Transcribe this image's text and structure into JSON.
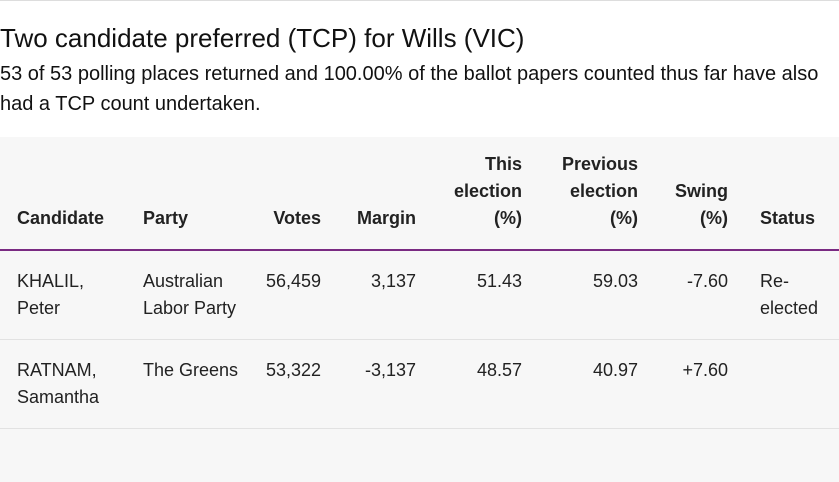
{
  "header": {
    "title": "Two candidate preferred (TCP) for Wills (VIC)",
    "subtitle": "53 of 53 polling places returned and 100.00% of the ballot papers counted thus far have also had a TCP count undertaken."
  },
  "table": {
    "columns": [
      "Candidate",
      "Party",
      "Votes",
      "Margin",
      "This election (%)",
      "Previous election (%)",
      "Swing (%)",
      "Status"
    ],
    "rows": [
      [
        "KHALIL, Peter",
        "Australian Labor Party",
        "56,459",
        "3,137",
        "51.43",
        "59.03",
        "-7.60",
        "Re-elected"
      ],
      [
        "RATNAM, Samantha",
        "The Greens",
        "53,322",
        "-3,137",
        "48.57",
        "40.97",
        "+7.60"
      ]
    ]
  }
}
